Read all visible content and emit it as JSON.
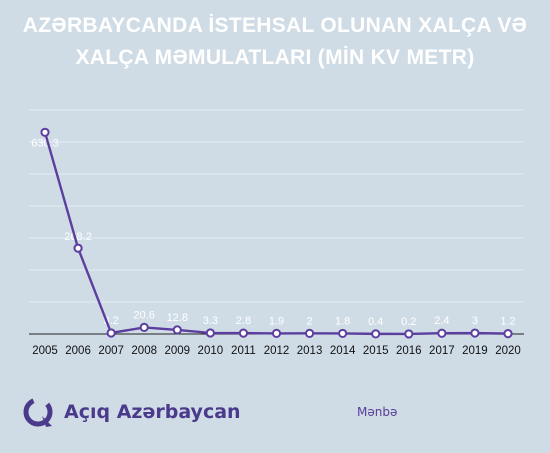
{
  "title_line1": "AZƏRBAYCANDA İSTEHSAL OLUNAN XALÇA VƏ",
  "title_line2": "XALÇA MƏMULATLARI (MİN KV METR)",
  "brand": "Açıq Azərbaycan",
  "source_label": "Mənbə",
  "colors": {
    "background": "#cfdce6",
    "line": "#5b3e9e",
    "marker_fill": "#ffffff",
    "title": "#ffffff",
    "brand": "#4b3a8c"
  },
  "chart_data": {
    "type": "line",
    "title": "AZƏRBAYCANDA İSTEHSAL OLUNAN XALÇA VƏ XALÇA MƏMULATLARI (MİN KV METR)",
    "xlabel": "",
    "ylabel": "",
    "categories": [
      "2005",
      "2006",
      "2007",
      "2008",
      "2009",
      "2010",
      "2011",
      "2012",
      "2013",
      "2014",
      "2015",
      "2016",
      "2017",
      "2019",
      "2020"
    ],
    "values": [
      630.3,
      268.2,
      3.2,
      20.6,
      12.8,
      3.3,
      2.8,
      1.9,
      2,
      1.8,
      0.4,
      0.2,
      2.4,
      3,
      1.2
    ],
    "labels": [
      "630.3",
      "268.2",
      "3.2",
      "20.6",
      "12.8",
      "3.3",
      "2.8",
      "1.9",
      "2",
      "1.8",
      "0.4",
      "0.2",
      "2.4",
      "3",
      "1.2"
    ],
    "ylim": [
      0,
      700
    ],
    "grid": true,
    "legend": "none"
  }
}
